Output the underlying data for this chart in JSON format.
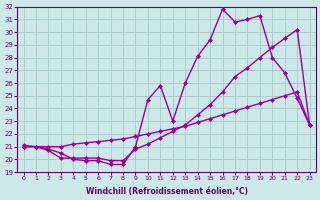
{
  "xlabel": "Windchill (Refroidissement éolien,°C)",
  "xlim_min": -0.5,
  "xlim_max": 23.5,
  "ylim_min": 19,
  "ylim_max": 32,
  "xticks": [
    0,
    1,
    2,
    3,
    4,
    5,
    6,
    7,
    8,
    9,
    10,
    11,
    12,
    13,
    14,
    15,
    16,
    17,
    18,
    19,
    20,
    21,
    22,
    23
  ],
  "yticks": [
    19,
    20,
    21,
    22,
    23,
    24,
    25,
    26,
    27,
    28,
    29,
    30,
    31,
    32
  ],
  "bg_color": "#cce8e8",
  "grid_color": "#aacccc",
  "line_color": "#990099",
  "line1_x": [
    0,
    1,
    2,
    3,
    4,
    5,
    6,
    7,
    8,
    9,
    10,
    11,
    12,
    13,
    14,
    15,
    16,
    17,
    18,
    19,
    20,
    21,
    22,
    23
  ],
  "line1_y": [
    21.0,
    21.0,
    20.8,
    20.5,
    20.0,
    19.9,
    19.9,
    19.6,
    19.6,
    21.0,
    24.7,
    25.8,
    23.0,
    26.0,
    28.1,
    29.4,
    31.8,
    30.8,
    31.0,
    31.3,
    28.0,
    26.8,
    24.8,
    22.7
  ],
  "line2_x": [
    0,
    1,
    2,
    3,
    4,
    5,
    6,
    7,
    8,
    9,
    10,
    11,
    12,
    13,
    14,
    15,
    16,
    17,
    18,
    19,
    20,
    21,
    22,
    23
  ],
  "line2_y": [
    21.1,
    21.0,
    20.7,
    20.1,
    20.1,
    20.1,
    20.1,
    19.9,
    19.9,
    20.8,
    21.2,
    21.7,
    22.2,
    22.7,
    23.5,
    24.3,
    25.3,
    26.5,
    27.2,
    28.0,
    28.8,
    29.5,
    30.2,
    22.7
  ],
  "line3_x": [
    0,
    1,
    2,
    3,
    4,
    5,
    6,
    7,
    8,
    9,
    10,
    11,
    12,
    13,
    14,
    15,
    16,
    17,
    18,
    19,
    20,
    21,
    22,
    23
  ],
  "line3_y": [
    21.0,
    21.0,
    21.0,
    21.0,
    21.2,
    21.3,
    21.4,
    21.5,
    21.6,
    21.8,
    22.0,
    22.2,
    22.4,
    22.6,
    22.9,
    23.2,
    23.5,
    23.8,
    24.1,
    24.4,
    24.7,
    25.0,
    25.3,
    22.7
  ]
}
